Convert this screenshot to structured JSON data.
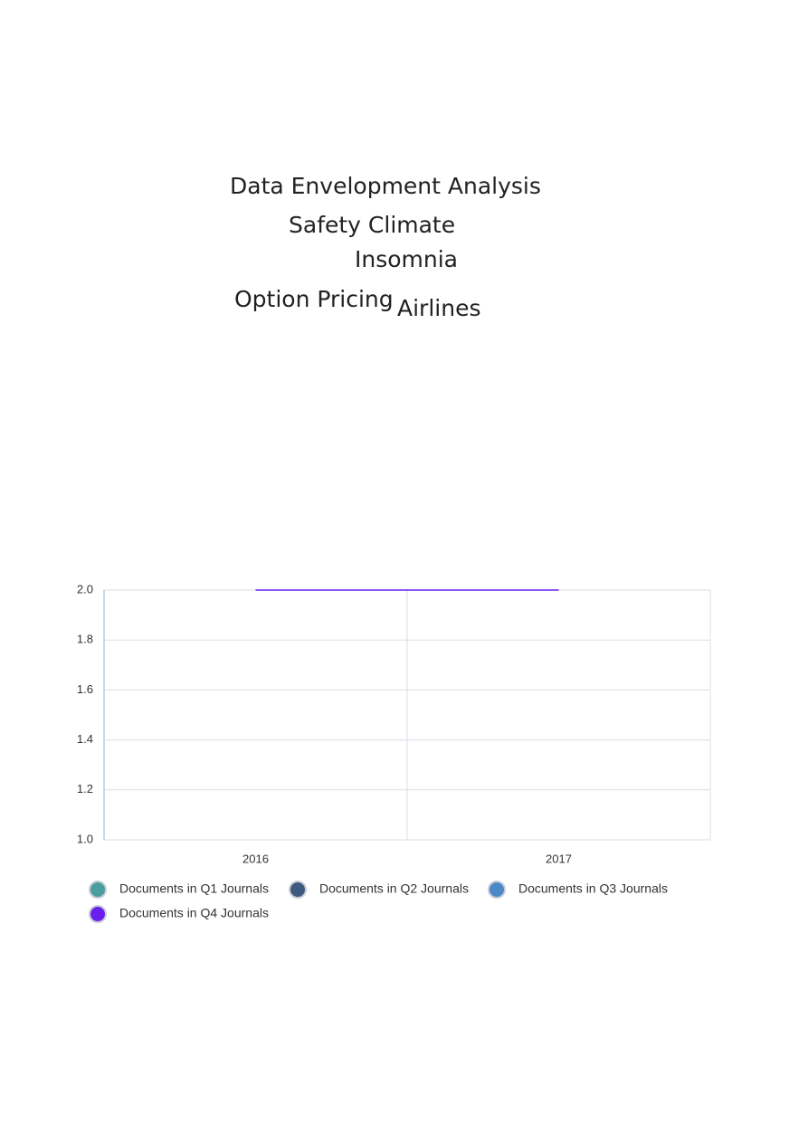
{
  "word_cloud": {
    "words": [
      "Data Envelopment Analysis",
      "Safety Climate",
      "Insomnia",
      "Option Pricing",
      "Airlines"
    ]
  },
  "chart_data": {
    "type": "line",
    "categories": [
      "2016",
      "2017"
    ],
    "series": [
      {
        "name": "Documents in Q1 Journals",
        "color": "#4a9e9e",
        "values": [
          null,
          null
        ]
      },
      {
        "name": "Documents in Q2 Journals",
        "color": "#3d5a80",
        "values": [
          null,
          null
        ]
      },
      {
        "name": "Documents in Q3 Journals",
        "color": "#4a88c7",
        "values": [
          null,
          null
        ]
      },
      {
        "name": "Documents in Q4 Journals",
        "color": "#6a1fef",
        "values": [
          2,
          2
        ]
      }
    ],
    "ylim": [
      1,
      2
    ],
    "yticks": [
      {
        "value": 1,
        "label": "1.0"
      },
      1.2,
      1.4,
      1.6,
      1.8,
      {
        "value": 2,
        "label": "2.0"
      }
    ],
    "grid": true
  }
}
